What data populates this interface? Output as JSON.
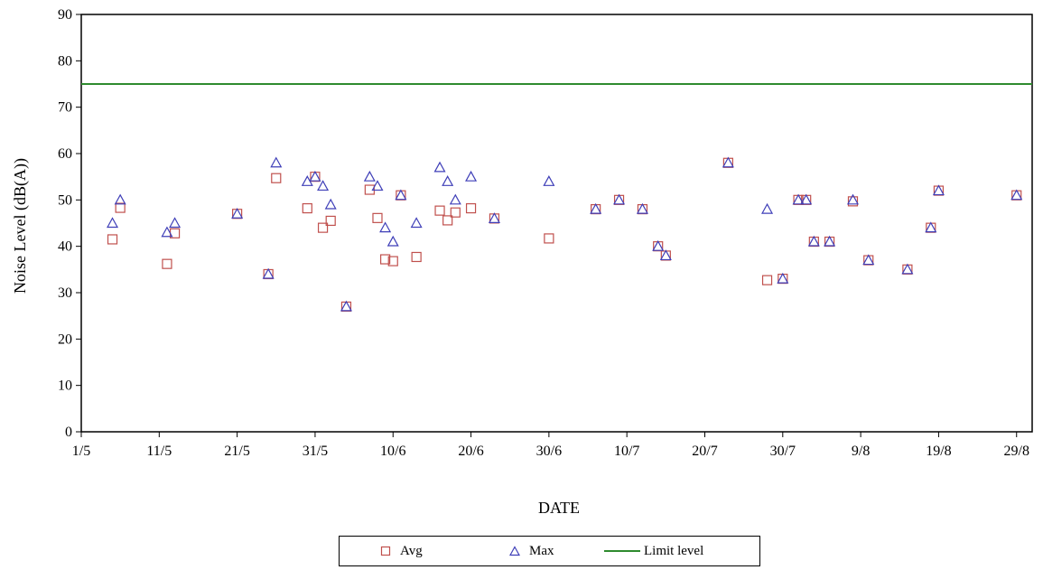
{
  "chart_data": {
    "type": "scatter",
    "title": "",
    "xlabel": "DATE",
    "ylabel": "Noise Level (dB(A))",
    "ylim": [
      0,
      90
    ],
    "yticks": [
      0,
      10,
      20,
      30,
      40,
      50,
      60,
      70,
      80,
      90
    ],
    "xlim": [
      "2000-05-01",
      "2000-08-31"
    ],
    "xticks": [
      "1/5",
      "11/5",
      "21/5",
      "31/5",
      "10/6",
      "20/6",
      "30/6",
      "10/7",
      "20/7",
      "30/7",
      "9/8",
      "19/8",
      "29/8"
    ],
    "grid": false,
    "legend_position": "bottom",
    "series": [
      {
        "name": "Avg",
        "marker": "square",
        "color": "#c0504d",
        "points": [
          {
            "x": "5/5",
            "y": 41.5
          },
          {
            "x": "6/5",
            "y": 48.3
          },
          {
            "x": "12/5",
            "y": 36.2
          },
          {
            "x": "13/5",
            "y": 42.8
          },
          {
            "x": "21/5",
            "y": 47
          },
          {
            "x": "25/5",
            "y": 34
          },
          {
            "x": "26/5",
            "y": 54.7
          },
          {
            "x": "30/5",
            "y": 48.2
          },
          {
            "x": "31/5",
            "y": 55
          },
          {
            "x": "1/6",
            "y": 44
          },
          {
            "x": "2/6",
            "y": 45.5
          },
          {
            "x": "4/6",
            "y": 27
          },
          {
            "x": "7/6",
            "y": 52.2
          },
          {
            "x": "8/6",
            "y": 46.1
          },
          {
            "x": "9/6",
            "y": 37.2
          },
          {
            "x": "10/6",
            "y": 36.8
          },
          {
            "x": "11/6",
            "y": 51
          },
          {
            "x": "13/6",
            "y": 37.7
          },
          {
            "x": "16/6",
            "y": 47.7
          },
          {
            "x": "17/6",
            "y": 45.6
          },
          {
            "x": "18/6",
            "y": 47.3
          },
          {
            "x": "20/6",
            "y": 48.2
          },
          {
            "x": "23/6",
            "y": 46
          },
          {
            "x": "30/6",
            "y": 41.7
          },
          {
            "x": "6/7",
            "y": 48
          },
          {
            "x": "9/7",
            "y": 50
          },
          {
            "x": "12/7",
            "y": 48
          },
          {
            "x": "14/7",
            "y": 40
          },
          {
            "x": "15/7",
            "y": 38
          },
          {
            "x": "23/7",
            "y": 58
          },
          {
            "x": "28/7",
            "y": 32.7
          },
          {
            "x": "30/7",
            "y": 33
          },
          {
            "x": "1/8",
            "y": 50
          },
          {
            "x": "2/8",
            "y": 50
          },
          {
            "x": "3/8",
            "y": 41
          },
          {
            "x": "5/8",
            "y": 41
          },
          {
            "x": "8/8",
            "y": 49.7
          },
          {
            "x": "10/8",
            "y": 37
          },
          {
            "x": "15/8",
            "y": 35
          },
          {
            "x": "18/8",
            "y": 44
          },
          {
            "x": "19/8",
            "y": 52
          },
          {
            "x": "29/8",
            "y": 51
          }
        ]
      },
      {
        "name": "Max",
        "marker": "triangle",
        "color": "#3f3fb8",
        "points": [
          {
            "x": "5/5",
            "y": 45
          },
          {
            "x": "6/5",
            "y": 50
          },
          {
            "x": "12/5",
            "y": 43
          },
          {
            "x": "13/5",
            "y": 45
          },
          {
            "x": "21/5",
            "y": 47
          },
          {
            "x": "25/5",
            "y": 34
          },
          {
            "x": "26/5",
            "y": 58
          },
          {
            "x": "30/5",
            "y": 54
          },
          {
            "x": "31/5",
            "y": 55
          },
          {
            "x": "1/6",
            "y": 53
          },
          {
            "x": "2/6",
            "y": 49
          },
          {
            "x": "4/6",
            "y": 27
          },
          {
            "x": "7/6",
            "y": 55
          },
          {
            "x": "8/6",
            "y": 53
          },
          {
            "x": "9/6",
            "y": 44
          },
          {
            "x": "10/6",
            "y": 41
          },
          {
            "x": "11/6",
            "y": 51
          },
          {
            "x": "13/6",
            "y": 45
          },
          {
            "x": "16/6",
            "y": 57
          },
          {
            "x": "17/6",
            "y": 54
          },
          {
            "x": "18/6",
            "y": 50
          },
          {
            "x": "20/6",
            "y": 55
          },
          {
            "x": "23/6",
            "y": 46
          },
          {
            "x": "30/6",
            "y": 54
          },
          {
            "x": "6/7",
            "y": 48
          },
          {
            "x": "9/7",
            "y": 50
          },
          {
            "x": "12/7",
            "y": 48
          },
          {
            "x": "14/7",
            "y": 40
          },
          {
            "x": "15/7",
            "y": 38
          },
          {
            "x": "23/7",
            "y": 58
          },
          {
            "x": "28/7",
            "y": 48
          },
          {
            "x": "30/7",
            "y": 33
          },
          {
            "x": "1/8",
            "y": 50
          },
          {
            "x": "2/8",
            "y": 50
          },
          {
            "x": "3/8",
            "y": 41
          },
          {
            "x": "5/8",
            "y": 41
          },
          {
            "x": "8/8",
            "y": 50
          },
          {
            "x": "10/8",
            "y": 37
          },
          {
            "x": "15/8",
            "y": 35
          },
          {
            "x": "18/8",
            "y": 44
          },
          {
            "x": "19/8",
            "y": 52
          },
          {
            "x": "29/8",
            "y": 51
          }
        ]
      },
      {
        "name": "Limit level",
        "type": "line",
        "color": "#2e8b2e",
        "y": 75
      }
    ]
  }
}
